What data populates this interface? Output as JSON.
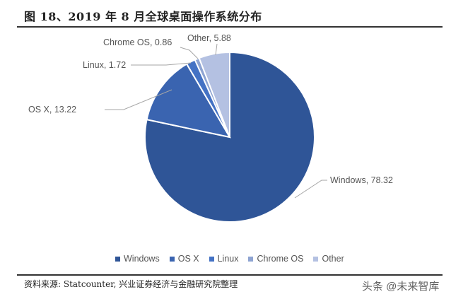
{
  "title": "图 18、2019 年 8 月全球桌面操作系统分布",
  "source": "资料来源: Statcounter, 兴业证券经济与金融研究院整理",
  "watermark": "头条 @未来智库",
  "chart_data": {
    "type": "pie",
    "title": "图 18、2019 年 8 月全球桌面操作系统分布",
    "categories": [
      "Windows",
      "OS X",
      "Linux",
      "Chrome OS",
      "Other"
    ],
    "values": [
      78.32,
      13.22,
      1.72,
      0.86,
      5.88
    ],
    "unit": "%",
    "colors": [
      "#2f5597",
      "#3a64b0",
      "#4472c4",
      "#8ea4d2",
      "#b4c1e2"
    ],
    "data_labels": [
      "Windows, 78.32",
      "OS X, 13.22",
      "Linux, 1.72",
      "Chrome OS, 0.86",
      "Other, 5.88"
    ],
    "legend_position": "bottom",
    "start_angle": "12 o'clock, clockwise",
    "source": "Statcounter"
  },
  "legend": [
    {
      "label": "Windows",
      "color": "#2f5597"
    },
    {
      "label": "OS X",
      "color": "#3a64b0"
    },
    {
      "label": "Linux",
      "color": "#4472c4"
    },
    {
      "label": "Chrome OS",
      "color": "#8ea4d2"
    },
    {
      "label": "Other",
      "color": "#b4c1e2"
    }
  ]
}
